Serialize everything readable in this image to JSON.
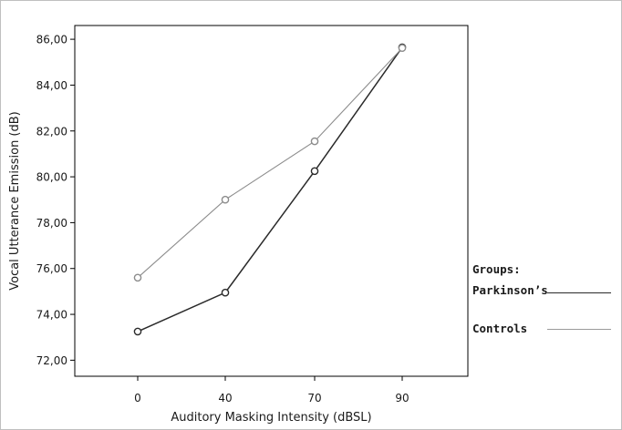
{
  "chart_data": {
    "type": "line",
    "xlabel": "Auditory Masking Intensity (dBSL)",
    "ylabel": "Vocal Utterance Emission (dB)",
    "categories": [
      "0",
      "40",
      "70",
      "90"
    ],
    "yticks": [
      "72,00",
      "74,00",
      "76,00",
      "78,00",
      "80,00",
      "82,00",
      "84,00",
      "86,00"
    ],
    "ylim": [
      71.3,
      86.6
    ],
    "grid": false,
    "legend": {
      "title": "Groups:",
      "placement": "right",
      "entries": [
        "Parkinson’s",
        "Controls"
      ]
    },
    "series": [
      {
        "name": "Parkinson’s",
        "color": "#2a2a2a",
        "values": [
          73.25,
          74.95,
          80.25,
          85.65
        ]
      },
      {
        "name": "Controls",
        "color": "#8c8c8c",
        "values": [
          75.6,
          79.0,
          81.55,
          85.62
        ]
      }
    ]
  }
}
